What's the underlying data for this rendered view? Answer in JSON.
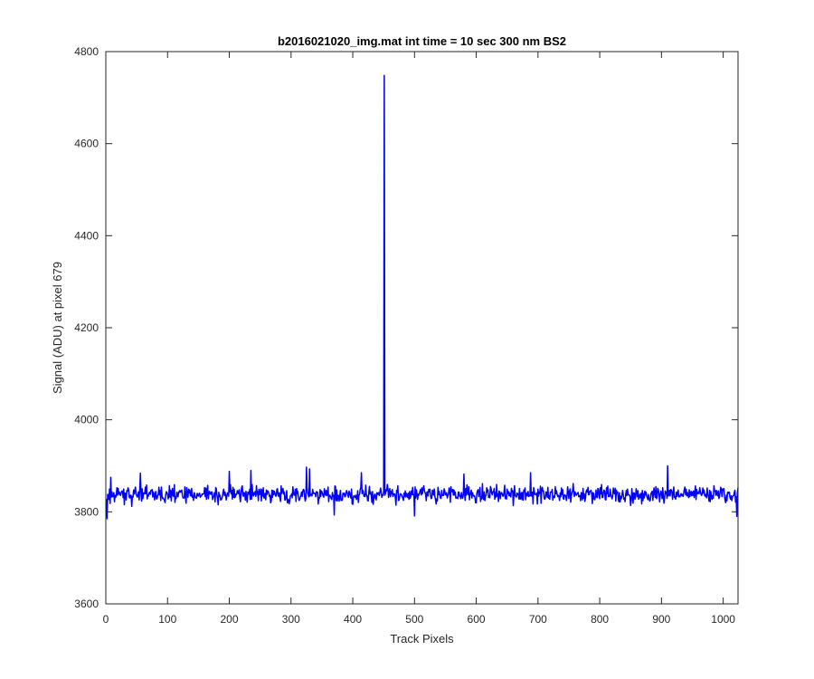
{
  "chart_data": {
    "type": "line",
    "title": "b2016021020_img.mat int time = 10 sec  300 nm BS2",
    "xlabel": "Track Pixels",
    "ylabel": "Signal (ADU) at pixel 679",
    "xlim": [
      0,
      1024
    ],
    "ylim": [
      3600,
      4800
    ],
    "xticks": [
      0,
      100,
      200,
      300,
      400,
      500,
      600,
      700,
      800,
      900,
      1000
    ],
    "yticks": [
      3600,
      3800,
      4000,
      4200,
      4400,
      4600,
      4800
    ],
    "xtick_labels": [
      "0",
      "100",
      "200",
      "300",
      "400",
      "500",
      "600",
      "700",
      "800",
      "900",
      "1000"
    ],
    "ytick_labels": [
      "3600",
      "3800",
      "4000",
      "4200",
      "4400",
      "4600",
      "4800"
    ],
    "grid": false,
    "series": [
      {
        "color": "#0000ff",
        "baseline": 3838,
        "noise_amplitude": 18,
        "spike": {
          "x": 451,
          "y": 4748
        },
        "notable_points": [
          {
            "x": 2,
            "y": 3785
          },
          {
            "x": 8,
            "y": 3875
          },
          {
            "x": 56,
            "y": 3884
          },
          {
            "x": 200,
            "y": 3888
          },
          {
            "x": 235,
            "y": 3890
          },
          {
            "x": 325,
            "y": 3897
          },
          {
            "x": 330,
            "y": 3893
          },
          {
            "x": 370,
            "y": 3793
          },
          {
            "x": 414,
            "y": 3885
          },
          {
            "x": 500,
            "y": 3791
          },
          {
            "x": 580,
            "y": 3882
          },
          {
            "x": 688,
            "y": 3885
          },
          {
            "x": 910,
            "y": 3900
          },
          {
            "x": 1022,
            "y": 3790
          }
        ]
      }
    ]
  }
}
